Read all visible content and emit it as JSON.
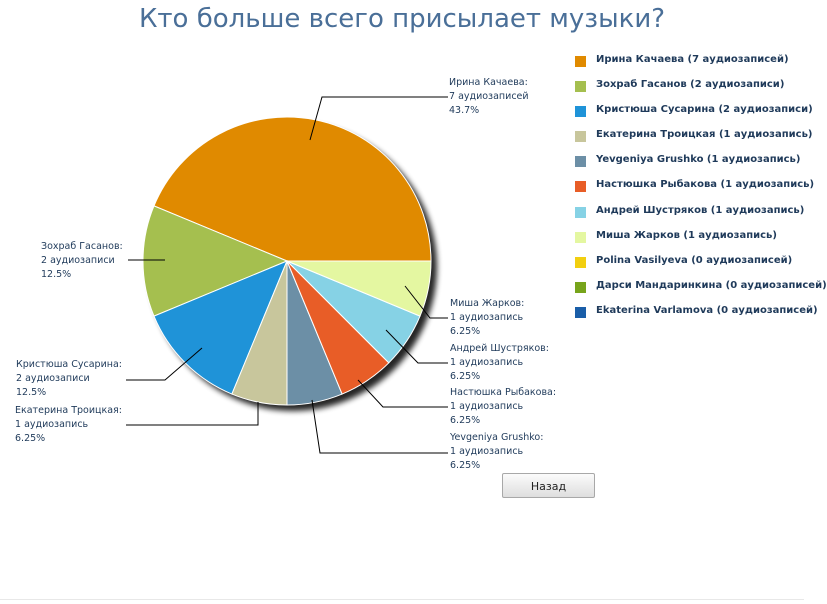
{
  "page": {
    "title": "Кто больше всего присылает музыки?",
    "back_label": "Назад"
  },
  "chart_data": {
    "type": "pie",
    "title": "Кто больше всего присылает музыки?",
    "slices": [
      {
        "name": "Ирина Качаева",
        "value": 7,
        "count_text": "7 аудиозаписей",
        "percent": "43.7%",
        "color": "#e08a00"
      },
      {
        "name": "Миша Жарков",
        "value": 1,
        "count_text": "1 аудиозапись",
        "percent": "6.25%",
        "color": "#e4f7a1"
      },
      {
        "name": "Андрей Шустряков",
        "value": 1,
        "count_text": "1 аудиозапись",
        "percent": "6.25%",
        "color": "#86d2e5"
      },
      {
        "name": "Настюшка Рыбакова",
        "value": 1,
        "count_text": "1 аудиозапись",
        "percent": "6.25%",
        "color": "#e85d27"
      },
      {
        "name": "Yevgeniya Grushko",
        "value": 1,
        "count_text": "1 аудиозапись",
        "percent": "6.25%",
        "color": "#6c8fa6"
      },
      {
        "name": "Екатерина Троицкая",
        "value": 1,
        "count_text": "1 аудиозапись",
        "percent": "6.25%",
        "color": "#c8c69c"
      },
      {
        "name": "Кристюша Сусарина",
        "value": 2,
        "count_text": "2 аудиозаписи",
        "percent": "12.5%",
        "color": "#1f93d8"
      },
      {
        "name": "Зохраб Гасанов",
        "value": 2,
        "count_text": "2 аудиозаписи",
        "percent": "12.5%",
        "color": "#a5bf4f"
      }
    ],
    "legend": [
      {
        "label": "Ирина Качаева (7 аудиозаписей)",
        "color": "#e08a00"
      },
      {
        "label": "Зохраб Гасанов (2 аудиозаписи)",
        "color": "#a5bf4f"
      },
      {
        "label": "Кристюша Сусарина (2 аудиозаписи)",
        "color": "#1f93d8"
      },
      {
        "label": "Екатерина Троицкая (1 аудиозапись)",
        "color": "#c8c69c"
      },
      {
        "label": "Yevgeniya Grushko (1 аудиозапись)",
        "color": "#6c8fa6"
      },
      {
        "label": "Настюшка Рыбакова (1 аудиозапись)",
        "color": "#e85d27"
      },
      {
        "label": "Андрей Шустряков (1 аудиозапись)",
        "color": "#86d2e5"
      },
      {
        "label": "Миша Жарков (1 аудиозапись)",
        "color": "#e4f7a1"
      },
      {
        "label": "Polina Vasilyeva (0 аудиозаписей)",
        "color": "#f2cf10"
      },
      {
        "label": "Дарси Мандаринкина (0 аудиозаписей)",
        "color": "#77a41b"
      },
      {
        "label": "Ekaterina Varlamova (0 аудиозаписей)",
        "color": "#1a5ea8"
      }
    ],
    "legend_position": "right"
  }
}
